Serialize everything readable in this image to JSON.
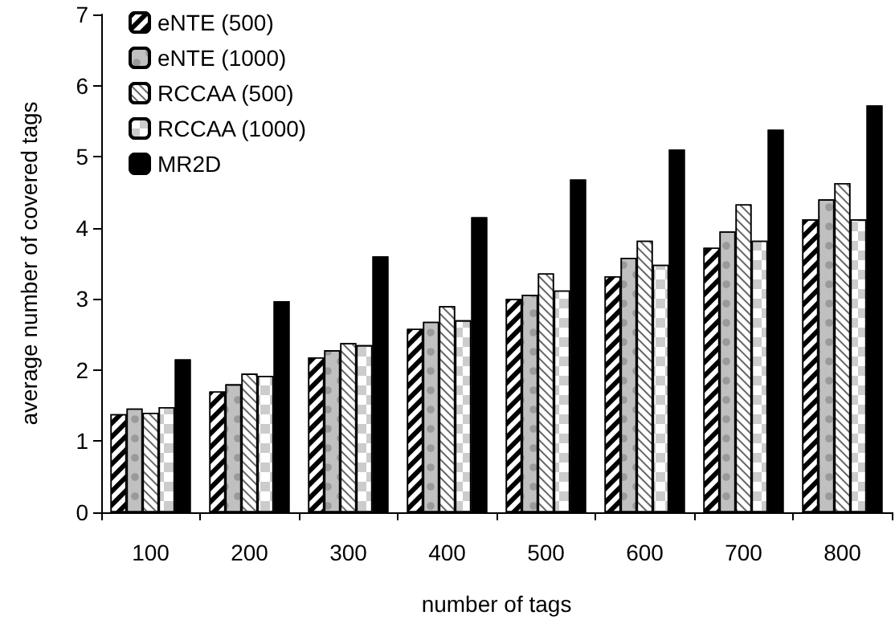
{
  "chart_data": {
    "type": "bar",
    "xlabel": "number of tags",
    "ylabel": "average number of covered tags",
    "categories": [
      "100",
      "200",
      "300",
      "400",
      "500",
      "600",
      "700",
      "800"
    ],
    "series": [
      {
        "name": "eNTE (500)",
        "color": "#ffffff",
        "values": [
          1.38,
          1.7,
          2.18,
          2.58,
          3.0,
          3.32,
          3.72,
          4.12
        ]
      },
      {
        "name": "eNTE (1000)",
        "color": "#c0c0c0",
        "values": [
          1.46,
          1.8,
          2.28,
          2.68,
          3.06,
          3.58,
          3.95,
          4.4
        ]
      },
      {
        "name": "RCCAA (500)",
        "color": "#ffffff",
        "values": [
          1.4,
          1.95,
          2.38,
          2.9,
          3.36,
          3.82,
          4.33,
          4.63
        ]
      },
      {
        "name": "RCCAA (1000)",
        "color": "#ffffff",
        "values": [
          1.48,
          1.92,
          2.35,
          2.7,
          3.12,
          3.48,
          3.82,
          4.12
        ]
      },
      {
        "name": "MR2D",
        "color": "#000000",
        "values": [
          2.15,
          2.97,
          3.6,
          4.15,
          4.68,
          5.1,
          5.38,
          5.72
        ]
      }
    ],
    "ylim": [
      0,
      7
    ],
    "yticks": [
      0,
      1,
      2,
      3,
      4,
      5,
      6,
      7
    ],
    "grid": false,
    "legend": "top left"
  }
}
